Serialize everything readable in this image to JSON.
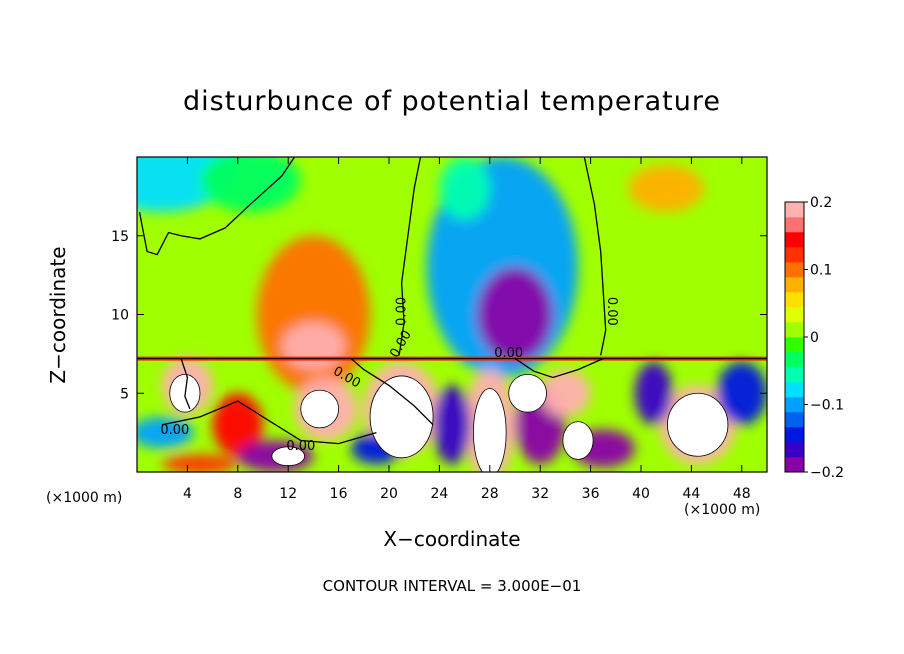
{
  "chart_data": {
    "type": "heatmap",
    "title": "disturbunce of potential temperature",
    "xlabel": "X−coordinate",
    "ylabel": "Z−coordinate",
    "x_unit_label": "(×1000 m)",
    "contour_note": "CONTOUR INTERVAL = 3.000E−01",
    "xlim": [
      0,
      50
    ],
    "ylim": [
      0,
      20
    ],
    "x_ticks": [
      4,
      8,
      12,
      16,
      20,
      24,
      28,
      32,
      36,
      40,
      44,
      48
    ],
    "y_ticks": [
      5,
      10,
      15
    ],
    "colorbar": {
      "min": -0.2,
      "max": 0.2,
      "ticks": [
        0.2,
        0.1,
        0,
        -0.1,
        -0.2
      ],
      "tick_labels": [
        "0.2",
        "0.1",
        "0",
        "−0.1",
        "−0.2"
      ],
      "colors": [
        "#8a00a8",
        "#3a00c8",
        "#0018e0",
        "#0060f0",
        "#00a0ff",
        "#00e0ff",
        "#00ffb0",
        "#00ff60",
        "#30ff00",
        "#a0ff00",
        "#e0ff00",
        "#ffe000",
        "#ffb000",
        "#ff7000",
        "#ff3000",
        "#ff0000",
        "#ff7070",
        "#ffb0b0"
      ]
    },
    "contour_labels": [
      "0.00",
      "0.00",
      "0.00",
      "0.00",
      "0.00",
      "0.00",
      "0.00"
    ],
    "blobs": [
      {
        "x": 2,
        "z": 19.5,
        "rx": 6,
        "rz": 3,
        "value": -0.08
      },
      {
        "x": 9,
        "z": 18.5,
        "rx": 4,
        "rz": 2,
        "value": -0.04
      },
      {
        "x": 14,
        "z": 10,
        "rx": 4.5,
        "rz": 5,
        "value": 0.1
      },
      {
        "x": 14,
        "z": 8,
        "rx": 2.5,
        "rz": 1.5,
        "value": 0.18
      },
      {
        "x": 29,
        "z": 13,
        "rx": 6,
        "rz": 7,
        "value": -0.1
      },
      {
        "x": 30,
        "z": 10,
        "rx": 3,
        "rz": 3,
        "value": -0.18
      },
      {
        "x": 42,
        "z": 18,
        "rx": 3,
        "rz": 1.5,
        "value": 0.08
      },
      {
        "x": 26,
        "z": 18,
        "rx": 2,
        "rz": 2,
        "value": -0.06
      },
      {
        "x": 4,
        "z": 5.5,
        "rx": 2,
        "rz": 1.8,
        "value": 0.2
      },
      {
        "x": 2,
        "z": 2.5,
        "rx": 2.5,
        "rz": 1,
        "value": -0.1
      },
      {
        "x": 8,
        "z": 3,
        "rx": 2,
        "rz": 2,
        "value": 0.14
      },
      {
        "x": 11,
        "z": 1,
        "rx": 3,
        "rz": 1,
        "value": -0.2
      },
      {
        "x": 15,
        "z": 4,
        "rx": 2.5,
        "rz": 2,
        "value": 0.2
      },
      {
        "x": 21,
        "z": 4,
        "rx": 3,
        "rz": 3,
        "value": 0.2
      },
      {
        "x": 28,
        "z": 3,
        "rx": 2,
        "rz": 3.5,
        "value": 0.2
      },
      {
        "x": 25,
        "z": 3,
        "rx": 1.5,
        "rz": 2.5,
        "value": -0.16
      },
      {
        "x": 32,
        "z": 3,
        "rx": 2,
        "rz": 2.5,
        "value": -0.18
      },
      {
        "x": 34,
        "z": 5,
        "rx": 2,
        "rz": 1.5,
        "value": 0.2
      },
      {
        "x": 37,
        "z": 1.5,
        "rx": 2.5,
        "rz": 1.2,
        "value": -0.2
      },
      {
        "x": 44.5,
        "z": 3,
        "rx": 3,
        "rz": 2.5,
        "value": 0.2
      },
      {
        "x": 48,
        "z": 5,
        "rx": 2,
        "rz": 2,
        "value": -0.14
      },
      {
        "x": 41,
        "z": 5,
        "rx": 1.5,
        "rz": 2,
        "value": -0.16
      },
      {
        "x": 19,
        "z": 1.5,
        "rx": 2,
        "rz": 1,
        "value": -0.14
      },
      {
        "x": 5,
        "z": 0.5,
        "rx": 3,
        "rz": 0.6,
        "value": 0.12
      }
    ],
    "saturated_regions": [
      {
        "x": 3.8,
        "z": 5.0,
        "rx": 1.2,
        "rz": 1.2
      },
      {
        "x": 21,
        "z": 3.5,
        "rx": 2.5,
        "rz": 2.6
      },
      {
        "x": 28,
        "z": 2.5,
        "rx": 1.3,
        "rz": 2.8
      },
      {
        "x": 44.5,
        "z": 3,
        "rx": 2.4,
        "rz": 2
      },
      {
        "x": 14.5,
        "z": 4,
        "rx": 1.5,
        "rz": 1.2
      },
      {
        "x": 31,
        "z": 5,
        "rx": 1.5,
        "rz": 1.2
      },
      {
        "x": 12,
        "z": 1.0,
        "rx": 1.3,
        "rz": 0.6
      },
      {
        "x": 35,
        "z": 2,
        "rx": 1.2,
        "rz": 1.2
      }
    ],
    "background_value": 0.02,
    "boundary_layer_top": 7.2
  }
}
